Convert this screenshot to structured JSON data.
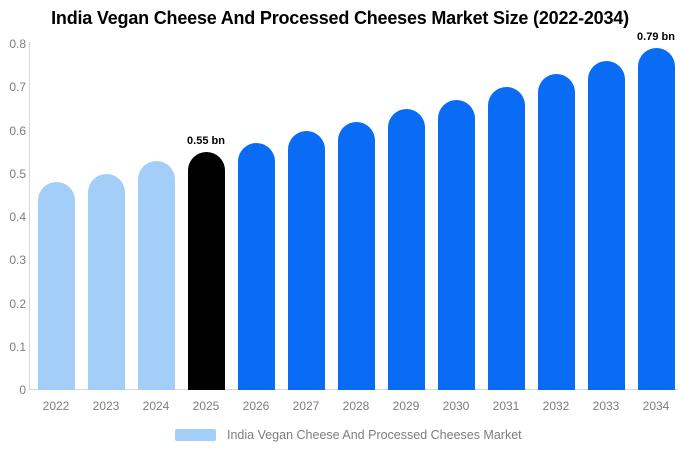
{
  "palette": {
    "light_blue": "#A3CEF7",
    "bright_blue": "#0A6CF5",
    "highlight_black": "#000000",
    "axis_line": "#D6D6D6",
    "tick_text": "#7D7D7D",
    "title_text": "#000000"
  },
  "chart_data": {
    "type": "bar",
    "title": "India Vegan Cheese And Processed Cheeses Market Size (2022-2034)",
    "xlabel": "",
    "ylabel": "",
    "unit": "bn",
    "categories": [
      "2022",
      "2023",
      "2024",
      "2025",
      "2026",
      "2027",
      "2028",
      "2029",
      "2030",
      "2031",
      "2032",
      "2033",
      "2034"
    ],
    "values": [
      0.48,
      0.5,
      0.53,
      0.55,
      0.57,
      0.6,
      0.62,
      0.65,
      0.67,
      0.7,
      0.73,
      0.76,
      0.79
    ],
    "bar_colors": [
      "#A3CEF7",
      "#A3CEF7",
      "#A3CEF7",
      "#000000",
      "#0A6CF5",
      "#0A6CF5",
      "#0A6CF5",
      "#0A6CF5",
      "#0A6CF5",
      "#0A6CF5",
      "#0A6CF5",
      "#0A6CF5",
      "#0A6CF5"
    ],
    "ylim": [
      0,
      0.8
    ],
    "yticks": [
      "0.8",
      "0.7",
      "0.6",
      "0.5",
      "0.4",
      "0.3",
      "0.2",
      "0.1",
      "0"
    ],
    "grid": false,
    "annotations": [
      {
        "category": "2025",
        "text": "0.55 bn"
      },
      {
        "category": "2034",
        "text": "0.79 bn"
      }
    ],
    "legend": {
      "position": "bottom",
      "label": "India Vegan Cheese And Processed Cheeses Market",
      "swatch_color": "#A3CEF7"
    }
  }
}
